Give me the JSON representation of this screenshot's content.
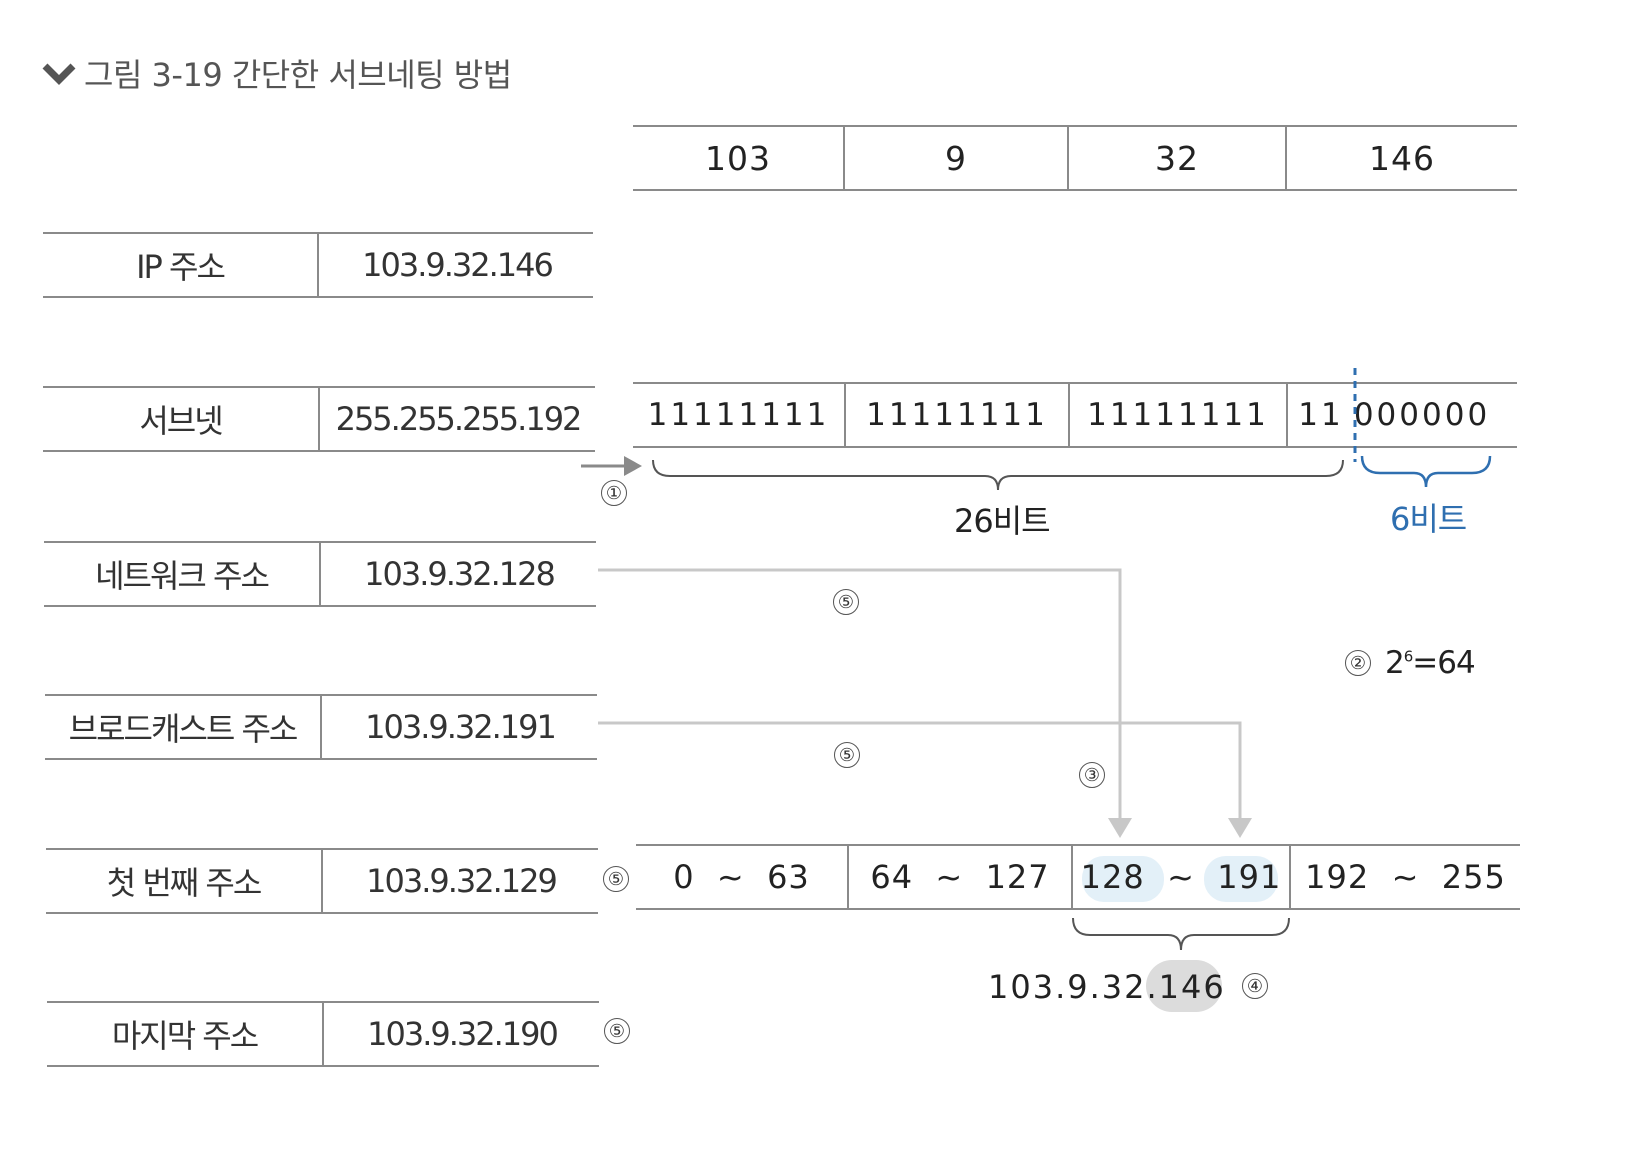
{
  "figure": {
    "icon": "chevron-down-icon",
    "title": "그림 3-19  간단한 서브네팅 방법"
  },
  "left_table": {
    "rows": [
      {
        "label": "IP 주소",
        "value": "103.9.32.146",
        "marker": ""
      },
      {
        "label": "서브넷",
        "value": "255.255.255.192",
        "marker": ""
      },
      {
        "label": "네트워크 주소",
        "value": "103.9.32.128",
        "marker": ""
      },
      {
        "label": "브로드캐스트 주소",
        "value": "103.9.32.191",
        "marker": ""
      },
      {
        "label": "첫 번째 주소",
        "value": "103.9.32.129",
        "marker": "⑤"
      },
      {
        "label": "마지막 주소",
        "value": "103.9.32.190",
        "marker": "⑤"
      }
    ]
  },
  "octets": [
    "103",
    "9",
    "32",
    "146"
  ],
  "binary": {
    "octets": [
      "11111111",
      "11111111",
      "11111111"
    ],
    "last_network_bits": "11",
    "last_host_bits": "000000"
  },
  "brackets": {
    "network_label": "26비트",
    "host_label": "6비트"
  },
  "steps": {
    "step1": "①",
    "step2": "②",
    "step2_formula_base": "2",
    "step2_formula_exp": "6",
    "step2_formula_rest": "=64",
    "step3": "③",
    "step4": "④",
    "step5": "⑤"
  },
  "ranges": [
    {
      "start": "0",
      "sep": "~",
      "end": "63"
    },
    {
      "start": "64",
      "sep": "~",
      "end": "127"
    },
    {
      "start": "128",
      "sep": "~",
      "end": "191"
    },
    {
      "start": "192",
      "sep": "~",
      "end": "255"
    }
  ],
  "result": {
    "prefix": "103.9.32.",
    "host": "146"
  },
  "colors": {
    "accent_blue": "#2f6fb0",
    "bubble_blue": "#e3f0f8",
    "bubble_gray": "#dcdcdc",
    "arrow_gray": "#c8c8c8"
  }
}
